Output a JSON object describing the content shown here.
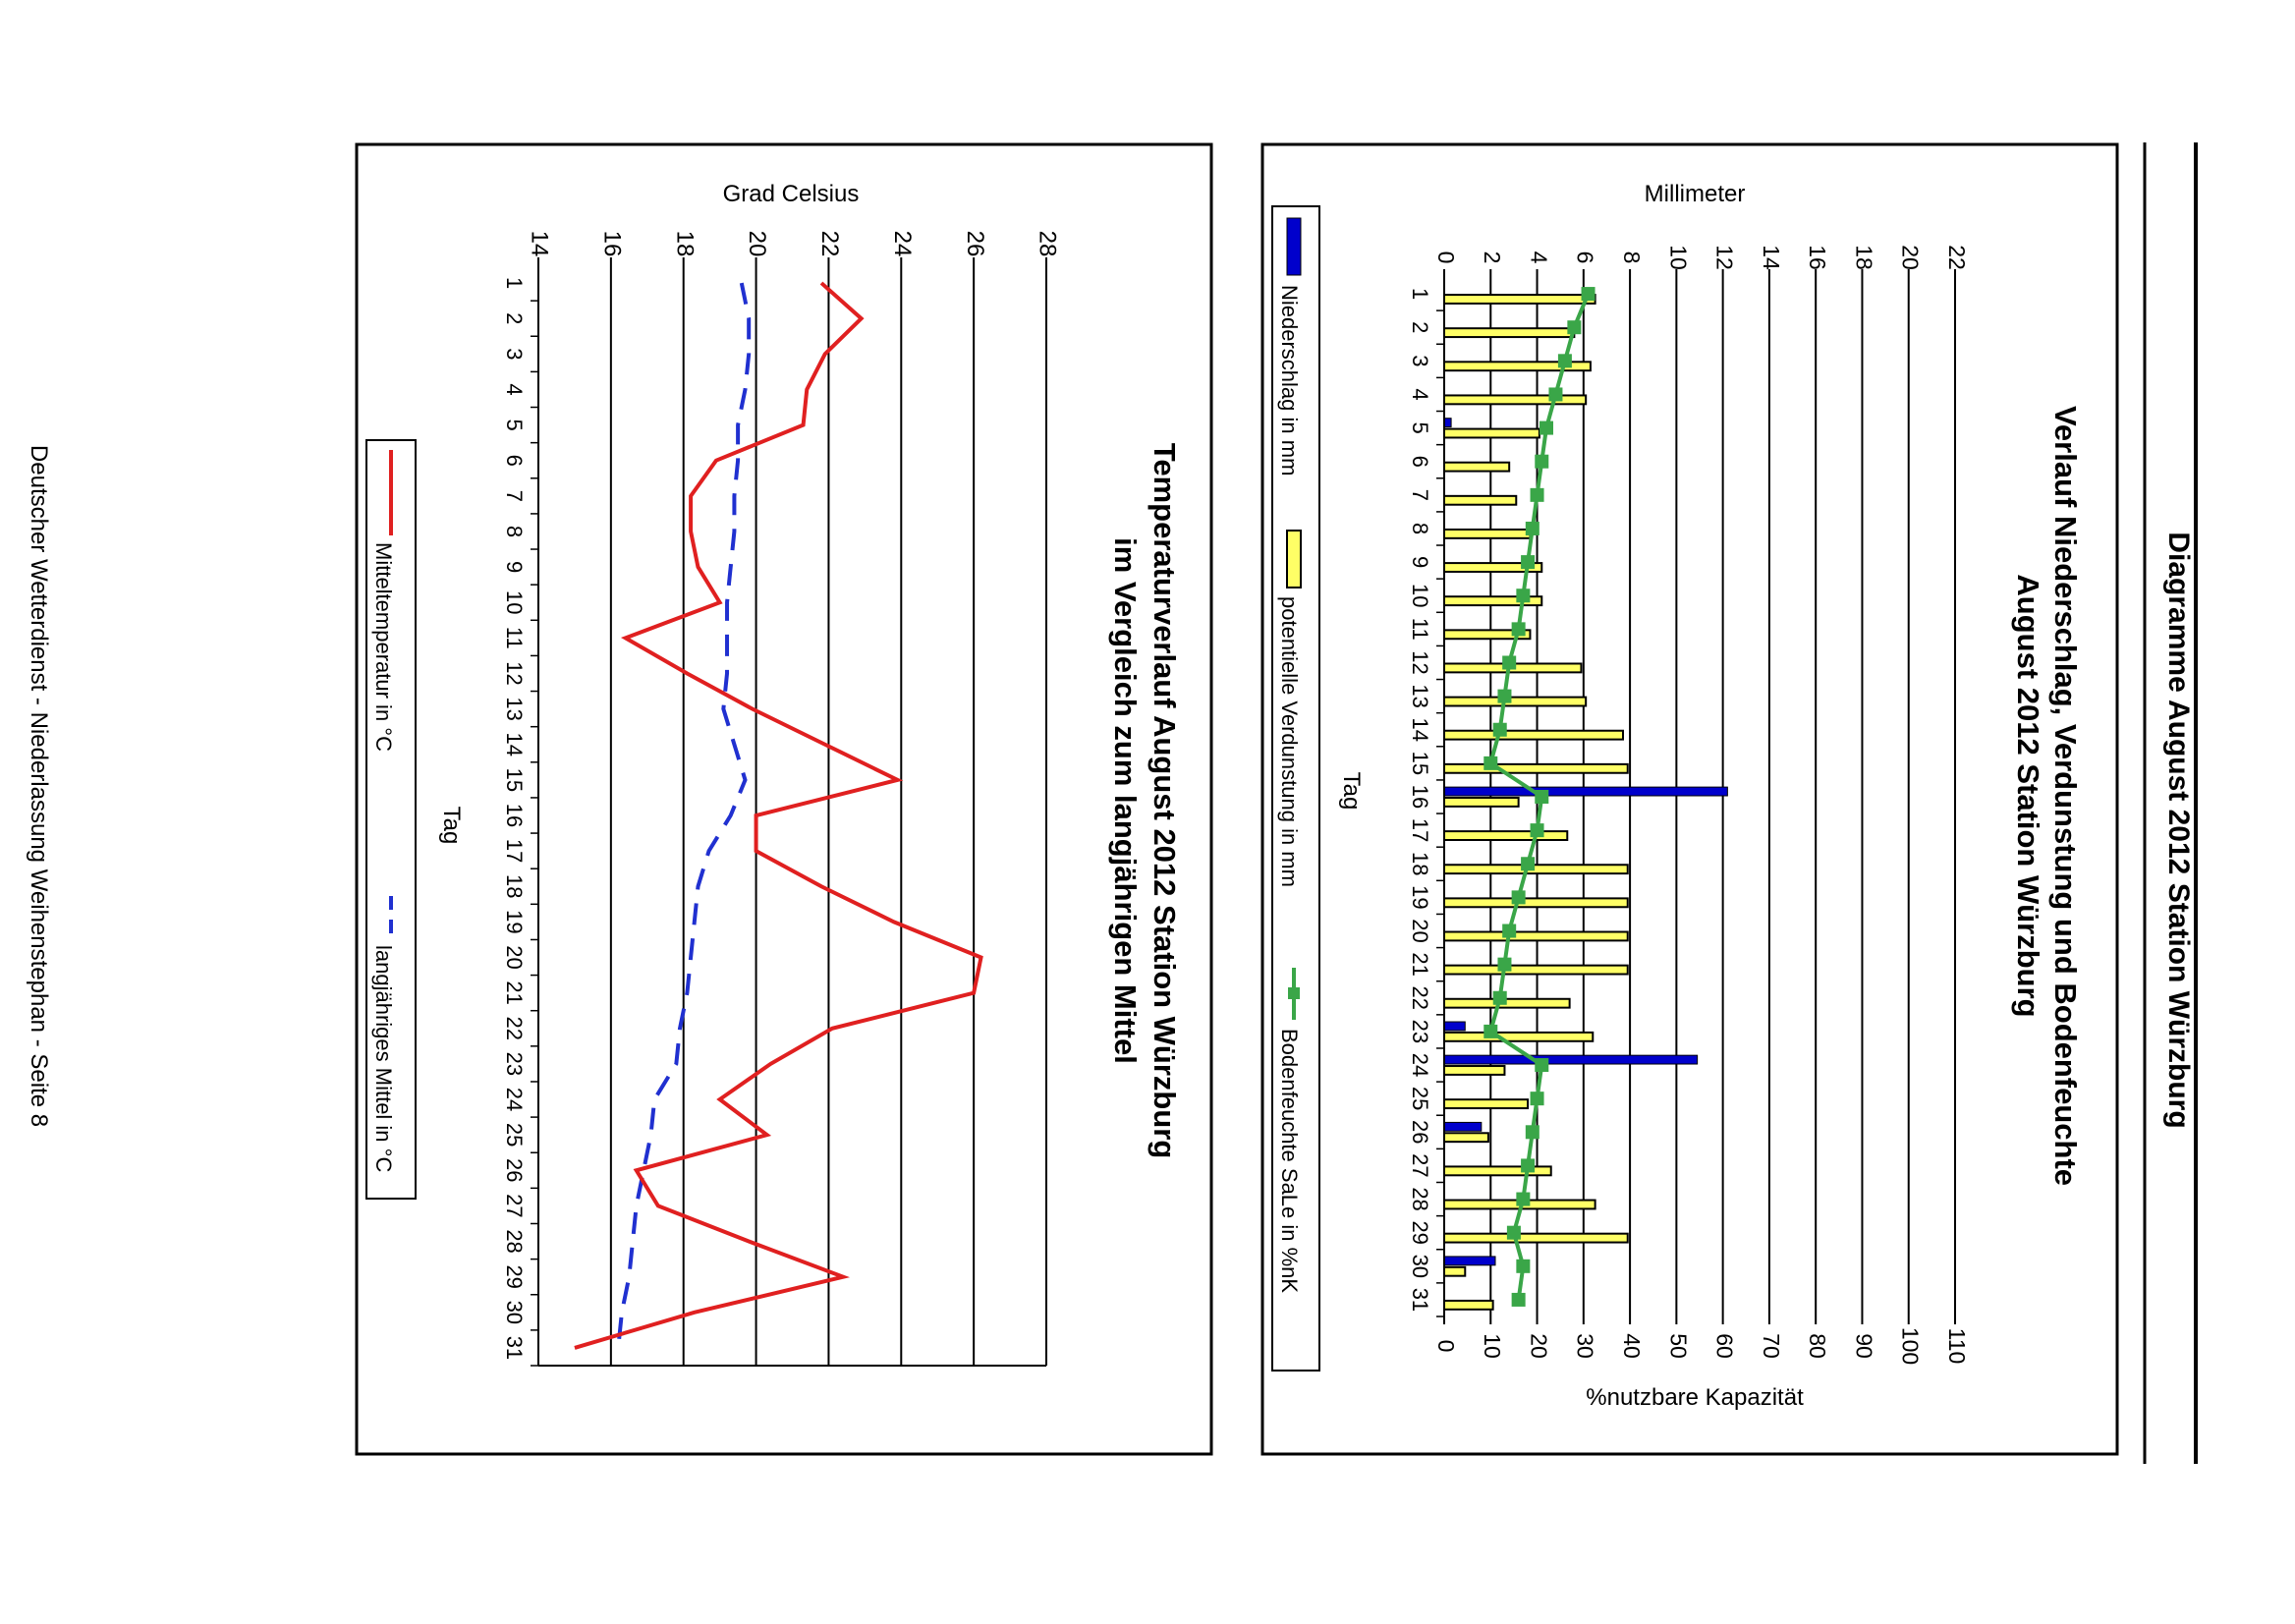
{
  "page_title": "Diagramme August 2012 Station Würzburg",
  "footer": "Deutscher Wetterdienst - Niederlassung Weihenstephan - Seite 8",
  "days": [
    "1",
    "2",
    "3",
    "4",
    "5",
    "6",
    "7",
    "8",
    "9",
    "10",
    "11",
    "12",
    "13",
    "14",
    "15",
    "16",
    "17",
    "18",
    "19",
    "20",
    "21",
    "22",
    "23",
    "24",
    "25",
    "26",
    "27",
    "28",
    "29",
    "30",
    "31"
  ],
  "colors": {
    "precip": "#0000cc",
    "evap": "#ffff66",
    "soil": "#3aa648",
    "mean_temp": "#e02020",
    "long_term": "#2030d0",
    "grid": "#000000"
  },
  "chart_data": [
    {
      "type": "bar",
      "title_line1": "Verlauf Niederschlag, Verdunstung und Bodenfeuchte",
      "title_line2": "August 2012 Station Würzburg",
      "xlabel": "Tag",
      "ylabel": "Millimeter",
      "y2label": "%nutzbare Kapazität",
      "ylim": [
        0,
        22
      ],
      "yticks": [
        "0",
        "2",
        "4",
        "6",
        "8",
        "10",
        "12",
        "14",
        "16",
        "18",
        "20",
        "22"
      ],
      "y2lim": [
        0,
        110
      ],
      "y2ticks": [
        "0",
        "10",
        "20",
        "30",
        "40",
        "50",
        "60",
        "70",
        "80",
        "90",
        "100",
        "110"
      ],
      "legend_position": "bottom",
      "legend": [
        "Niederschlag in mm",
        "potentielle Verdunstung in mm",
        "Bodenfeuchte SaLe in %nK"
      ],
      "series": [
        {
          "name": "Niederschlag in mm",
          "type": "bar",
          "axis": "mm",
          "values": [
            0,
            0,
            0,
            0,
            0.3,
            0,
            0,
            0,
            0,
            0,
            0,
            0,
            0,
            0,
            0,
            12.2,
            0,
            0,
            0,
            0,
            0,
            0,
            0.9,
            10.9,
            0,
            1.6,
            0,
            0,
            0,
            2.2,
            0
          ]
        },
        {
          "name": "potentielle Verdunstung in mm",
          "type": "bar",
          "axis": "mm",
          "values": [
            6.5,
            5.6,
            6.3,
            6.1,
            4.1,
            2.8,
            3.1,
            3.7,
            4.2,
            4.2,
            3.7,
            5.9,
            6.1,
            7.7,
            7.9,
            3.2,
            5.3,
            7.9,
            7.9,
            7.9,
            7.9,
            5.4,
            6.4,
            2.6,
            3.6,
            1.9,
            4.6,
            6.5,
            7.9,
            0.9,
            2.1
          ]
        },
        {
          "name": "Bodenfeuchte SaLe in %nK",
          "type": "line",
          "axis": "pct",
          "values": [
            31,
            28,
            26,
            24,
            22,
            21,
            20,
            19,
            18,
            17,
            16,
            14,
            13,
            12,
            10,
            21,
            20,
            18,
            16,
            14,
            13,
            12,
            10,
            21,
            20,
            19,
            18,
            17,
            15,
            17,
            16
          ]
        }
      ]
    },
    {
      "type": "line",
      "title_line1": "Temperaturverlauf August 2012 Station Würzburg",
      "title_line2": "im Vergleich zum langjährigen Mittel",
      "xlabel": "Tag",
      "ylabel": "Grad Celsius",
      "ylim": [
        14,
        28
      ],
      "yticks": [
        "14",
        "16",
        "18",
        "20",
        "22",
        "24",
        "26",
        "28"
      ],
      "legend_position": "bottom",
      "legend": [
        "Mitteltemperatur in °C",
        "langjähriges Mittel in °C"
      ],
      "series": [
        {
          "name": "Mitteltemperatur in °C",
          "values": [
            21.8,
            22.9,
            21.9,
            21.4,
            21.3,
            18.9,
            18.2,
            18.2,
            18.4,
            19.0,
            16.4,
            18.1,
            19.9,
            21.9,
            23.9,
            20.0,
            20.0,
            21.8,
            23.8,
            26.2,
            26.0,
            22.1,
            20.4,
            19.0,
            20.3,
            16.7,
            17.3,
            19.8,
            22.4,
            18.3,
            15.0
          ]
        },
        {
          "name": "langjähriges Mittel in °C",
          "values": [
            19.6,
            19.8,
            19.8,
            19.7,
            19.5,
            19.5,
            19.4,
            19.4,
            19.3,
            19.2,
            19.2,
            19.2,
            19.1,
            19.4,
            19.7,
            19.3,
            18.7,
            18.4,
            18.3,
            18.2,
            18.1,
            17.9,
            17.8,
            17.2,
            17.1,
            16.9,
            16.7,
            16.6,
            16.5,
            16.3,
            16.2
          ]
        }
      ]
    }
  ]
}
